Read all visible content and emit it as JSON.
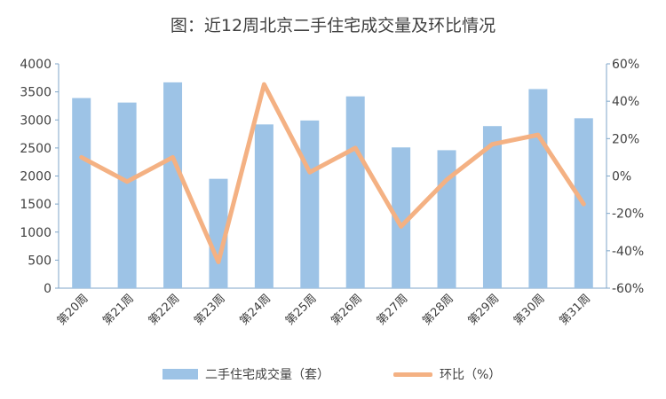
{
  "chart_data": {
    "type": "bar",
    "title": "图：近12周北京二手住宅成交量及环比情况",
    "categories": [
      "第20周",
      "第21周",
      "第22周",
      "第23周",
      "第24周",
      "第25周",
      "第26周",
      "第27周",
      "第28周",
      "第29周",
      "第30周",
      "第31周"
    ],
    "series": [
      {
        "name": "二手住宅成交量（套）",
        "type": "bar",
        "axis": "left",
        "color": "#9DC3E6",
        "values": [
          3390,
          3310,
          3670,
          1950,
          2920,
          2990,
          3420,
          2510,
          2460,
          2890,
          3550,
          3030
        ]
      },
      {
        "name": "环比（%）",
        "type": "line",
        "axis": "right",
        "color": "#F4B183",
        "values": [
          10,
          -3,
          10,
          -46,
          49,
          2,
          15,
          -27,
          -2,
          17,
          22,
          -15
        ]
      }
    ],
    "y_left": {
      "min": 0,
      "max": 4000,
      "step": 500,
      "ticks": [
        "0",
        "500",
        "1000",
        "1500",
        "2000",
        "2500",
        "3000",
        "3500",
        "4000"
      ]
    },
    "y_right": {
      "min": -60,
      "max": 60,
      "step": 20,
      "ticks": [
        "-60%",
        "-40%",
        "-20%",
        "0%",
        "20%",
        "40%",
        "60%"
      ]
    },
    "grid": false,
    "legend": "bottom"
  }
}
